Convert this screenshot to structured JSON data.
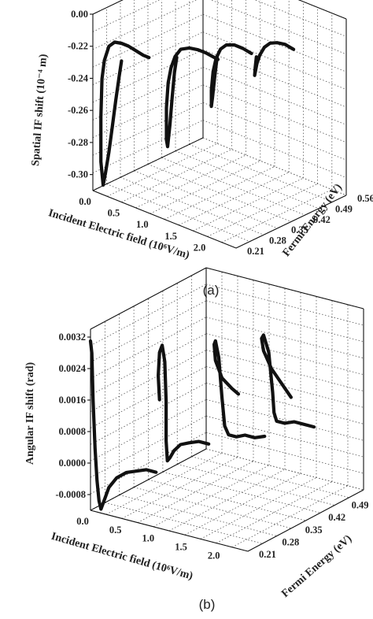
{
  "chart_data": [
    {
      "panel": "(a)",
      "type": "line-3d",
      "zlabel": "Spatial IF shift (10⁻⁴ m)",
      "xlabel": "Incident Electric field (10⁶V/m)",
      "ylabel": "Fermi Energy (eV)",
      "z_ticks": [
        "0.00",
        "-0.22",
        "-0.24",
        "-0.26",
        "-0.28",
        "-0.30"
      ],
      "x_ticks": [
        "0.0",
        "0.5",
        "1.0",
        "1.5",
        "2.0"
      ],
      "y_ticks": [
        "0.21",
        "0.28",
        "0.35",
        "0.42",
        "0.49",
        "0.56"
      ],
      "grid": true,
      "series": [
        {
          "fermi_energy": 0.21,
          "x": [
            0.5,
            0.46,
            0.4,
            0.34,
            0.28,
            0.22,
            0.18,
            0.14,
            0.14,
            0.16,
            0.2,
            0.28,
            0.38,
            0.5,
            0.62,
            0.75,
            0.88,
            0.98
          ],
          "y": [
            -0.222,
            -0.232,
            -0.248,
            -0.265,
            -0.282,
            -0.296,
            -0.304,
            -0.29,
            -0.262,
            -0.238,
            -0.226,
            -0.216,
            -0.212,
            -0.211,
            -0.211,
            -0.212,
            -0.213,
            -0.213
          ]
        },
        {
          "fermi_energy": 0.28,
          "x": [
            1.08,
            1.04,
            1.0,
            0.96,
            0.92,
            0.9,
            0.9,
            0.93,
            0.98,
            1.05,
            1.15,
            1.3,
            1.45,
            1.6,
            1.8
          ],
          "y": [
            -0.218,
            -0.228,
            -0.244,
            -0.262,
            -0.276,
            -0.272,
            -0.252,
            -0.236,
            -0.226,
            -0.218,
            -0.212,
            -0.209,
            -0.208,
            -0.208,
            -0.209
          ]
        },
        {
          "fermi_energy": 0.35,
          "x": [
            1.4,
            1.36,
            1.32,
            1.3,
            1.3,
            1.33,
            1.38,
            1.46,
            1.56,
            1.7,
            1.85,
            2.0
          ],
          "y": [
            -0.22,
            -0.232,
            -0.246,
            -0.252,
            -0.242,
            -0.23,
            -0.221,
            -0.214,
            -0.21,
            -0.208,
            -0.208,
            -0.209
          ]
        },
        {
          "fermi_energy": 0.42,
          "x": [
            1.7,
            1.68,
            1.67,
            1.68,
            1.71,
            1.76,
            1.84,
            1.94,
            2.06,
            2.2,
            2.35
          ],
          "y": [
            -0.222,
            -0.229,
            -0.234,
            -0.232,
            -0.226,
            -0.22,
            -0.214,
            -0.21,
            -0.208,
            -0.207,
            -0.208
          ]
        }
      ]
    },
    {
      "panel": "(b)",
      "type": "line-3d",
      "zlabel": "Angular IF shift (rad)",
      "xlabel": "Incident Electric field (10⁶V/m)",
      "ylabel": "Fermi Energy (eV)",
      "z_ticks": [
        "0.0032",
        "0.0024",
        "0.0016",
        "0.0008",
        "0.0000",
        "-0.0008"
      ],
      "x_ticks": [
        "0.0",
        "0.5",
        "1.0",
        "1.5",
        "2.0"
      ],
      "y_ticks": [
        "0.21",
        "0.28",
        "0.35",
        "0.42",
        "0.49",
        "0.56"
      ],
      "grid": true,
      "series": [
        {
          "fermi_energy": 0.21,
          "x": [
            0.0,
            0.02,
            0.04,
            0.07,
            0.1,
            0.13,
            0.16,
            0.2,
            0.28,
            0.4,
            0.55,
            0.7,
            0.85,
            1.0
          ],
          "y": [
            0.0031,
            0.0028,
            0.0016,
            0.0004,
            -0.0004,
            -0.0009,
            -0.0011,
            -0.0009,
            -0.0005,
            -0.0002,
            0.0,
            0.0001,
            0.0002,
            0.0002
          ]
        },
        {
          "fermi_energy": 0.28,
          "x": [
            0.7,
            0.68,
            0.7,
            0.74,
            0.78,
            0.8,
            0.8,
            0.82,
            0.86,
            0.92,
            1.02,
            1.15,
            1.3,
            1.45
          ],
          "y": [
            0.0016,
            0.0022,
            0.0028,
            0.003,
            0.0026,
            0.0016,
            0.0006,
            0.0001,
            0.0002,
            0.0004,
            0.0006,
            0.0007,
            0.0008,
            0.0008
          ]
        },
        {
          "fermi_energy": 0.35,
          "x": [
            1.55,
            1.45,
            1.3,
            1.2,
            1.18,
            1.2,
            1.25,
            1.3,
            1.34,
            1.4,
            1.52,
            1.65,
            1.8,
            1.95
          ],
          "y": [
            0.0018,
            0.0019,
            0.0021,
            0.0025,
            0.0029,
            0.003,
            0.0026,
            0.0016,
            0.0009,
            0.0007,
            0.0007,
            0.0008,
            0.0008,
            0.0009
          ]
        },
        {
          "fermi_energy": 0.42,
          "x": [
            2.0,
            1.85,
            1.7,
            1.58,
            1.55,
            1.58,
            1.66,
            1.72,
            1.74,
            1.78,
            1.9,
            2.05,
            2.2,
            2.35
          ],
          "y": [
            0.0016,
            0.0019,
            0.0022,
            0.0026,
            0.0029,
            0.003,
            0.0026,
            0.0016,
            0.0011,
            0.0009,
            0.0009,
            0.001,
            0.001,
            0.001
          ]
        }
      ]
    }
  ],
  "panels": [
    {
      "label": "(a)"
    },
    {
      "label": "(b)"
    }
  ]
}
